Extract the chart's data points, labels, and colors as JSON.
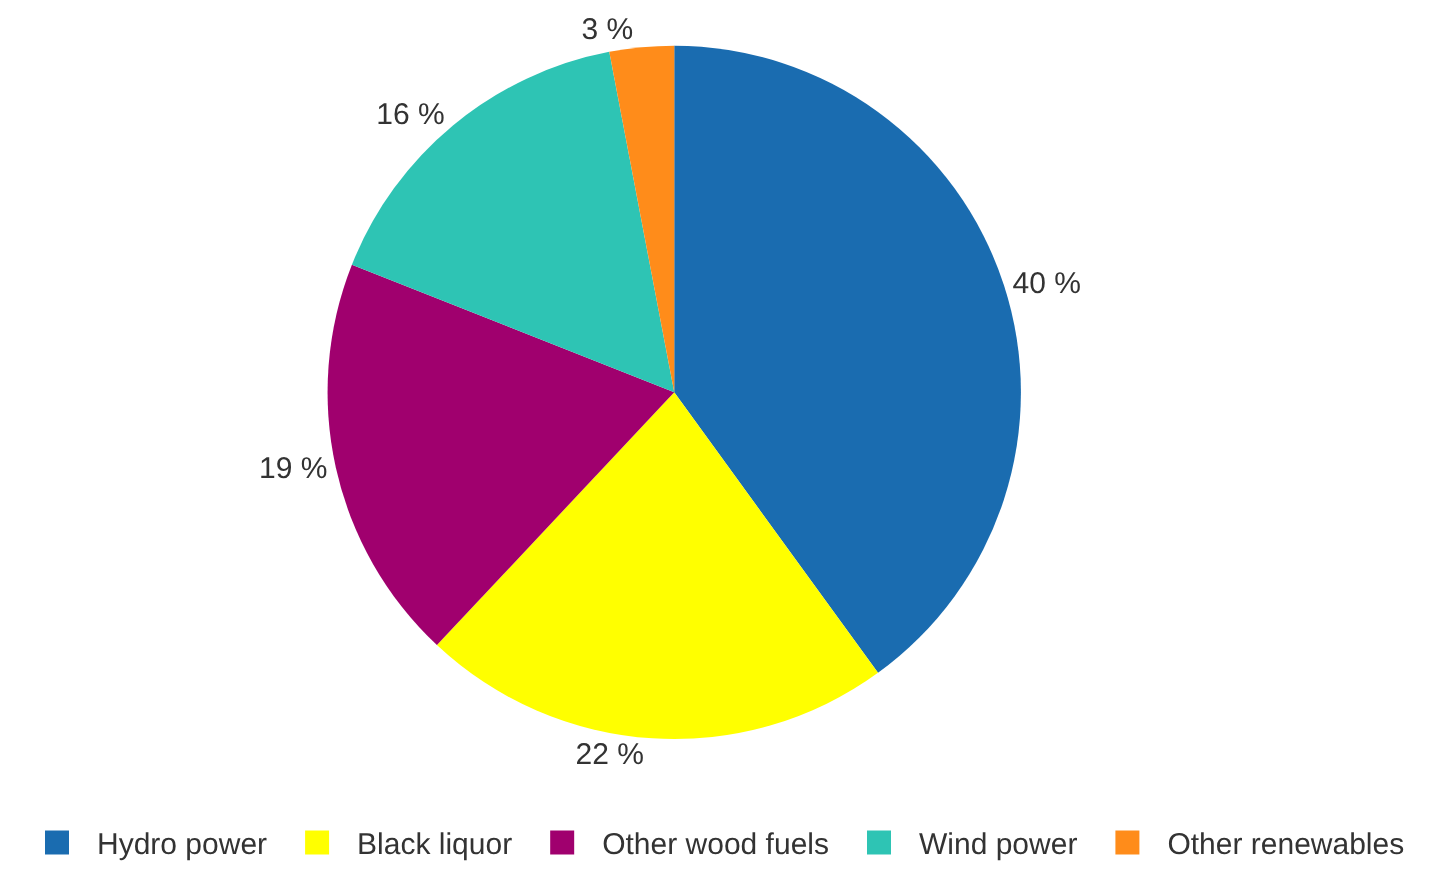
{
  "chart_data": {
    "type": "pie",
    "categories": [
      "Hydro power",
      "Black liquor",
      "Other wood fuels",
      "Wind power",
      "Other renewables"
    ],
    "values": [
      40,
      22,
      19,
      16,
      3
    ],
    "colors": [
      "#1a6cb0",
      "#ffff00",
      "#a0006e",
      "#2ec4b4",
      "#ff8c1a"
    ],
    "value_labels": [
      "40 %",
      "22 %",
      "19 %",
      "16 %",
      "3 %"
    ],
    "legend": "bottom"
  }
}
